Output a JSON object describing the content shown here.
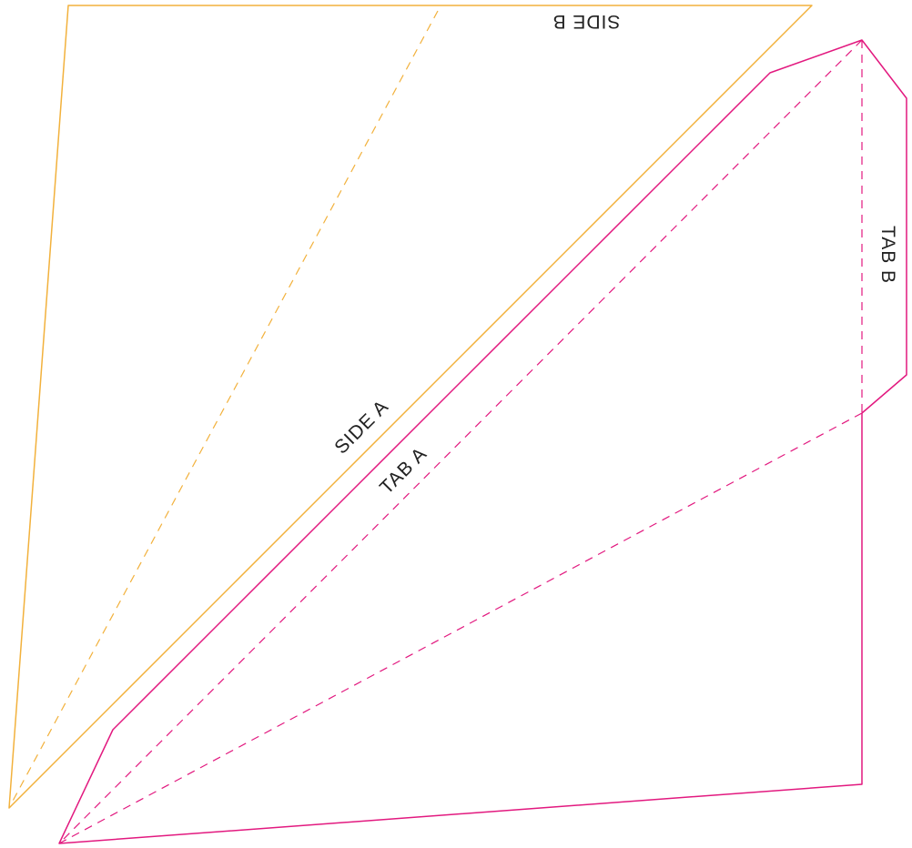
{
  "colors": {
    "background": "#ffffff",
    "side_piece": "#F2B13C",
    "tab_piece": "#E2197F"
  },
  "pieces": [
    {
      "name": "side-piece",
      "color_key": "side_piece",
      "fold_lines": 1
    },
    {
      "name": "tab-piece",
      "color_key": "tab_piece",
      "fold_lines": 3
    }
  ],
  "labels": {
    "side_a": "SIDE A",
    "side_b": "SIDE B",
    "tab_a": "TAB A",
    "tab_b": "TAB B"
  }
}
